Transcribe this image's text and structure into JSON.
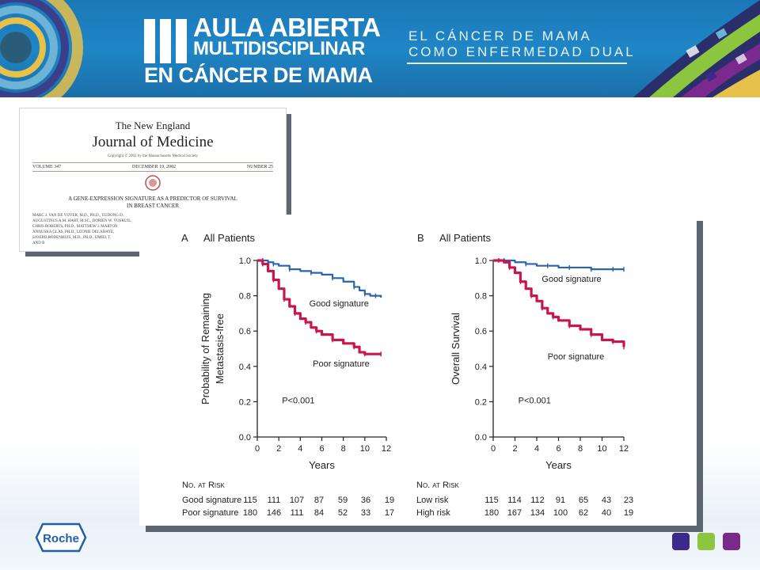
{
  "header": {
    "roman": "III",
    "title_line1": "AULA ABIERTA",
    "title_line2": "MULTIDISCIPLINAR",
    "title_line3": "EN CÁNCER DE MAMA",
    "subtitle_line1": "EL CÁNCER DE MAMA",
    "subtitle_line2": "COMO ENFERMEDAD DUAL"
  },
  "paper": {
    "journal_line1": "The New England",
    "journal_line2": "Journal of Medicine",
    "copyright": "Copyright © 2002 by the Massachusetts Medical Society",
    "volume": "VOLUME 347",
    "date": "DECEMBER 19, 2002",
    "number": "NUMBER 25",
    "article_title_line1": "A GENE-EXPRESSION SIGNATURE AS A PREDICTOR OF SURVIVAL",
    "article_title_line2": "IN BREAST CANCER",
    "authors": [
      "MARC J. VAN DE VIJVER, M.D., PH.D., YUDONG D.",
      "AUGUSTINUS A.M. HART, M.SC., DORIEN W. VOSKUIL,",
      "CHRIS ROBERTS, PH.D., MATTHEW J. MARTON",
      "ANNUSKA GLAS, PH.D., LEONIE DELAHAYE,",
      "SJOERD RODENHUIS, M.D., PH.D., EMIEL T.",
      "AND R"
    ]
  },
  "footer": {
    "logo": "Roche"
  },
  "colors": {
    "header_blue": "#1f86c6",
    "good": "#2b63b0",
    "poor": "#c8174a",
    "sq1": "#3b2a8c",
    "sq2": "#8cc63f",
    "sq3": "#7a2a8c"
  },
  "chart_data": [
    {
      "type": "line",
      "panel_letter": "A",
      "title": "All Patients",
      "ylabel_line1": "Probability of Remaining",
      "ylabel_line2": "Metastasis-free",
      "xlabel": "Years",
      "xlim": [
        0,
        12
      ],
      "ylim": [
        0.0,
        1.0
      ],
      "xticks": [
        0,
        2,
        4,
        6,
        8,
        10,
        12
      ],
      "yticks": [
        0.0,
        0.2,
        0.4,
        0.6,
        0.8,
        1.0
      ],
      "ytick_labels": [
        "0.0",
        "0.2",
        "0.4",
        "0.6",
        "0.8",
        "1.0"
      ],
      "pvalue": "P<0.001",
      "series": [
        {
          "name": "Good signature",
          "color": "#2b63b0",
          "x": [
            0,
            0.5,
            1,
            1.5,
            2,
            3,
            4,
            5,
            6,
            7,
            8,
            9,
            9.5,
            10,
            10.5,
            11,
            11.5
          ],
          "y": [
            1.0,
            1.0,
            0.99,
            0.98,
            0.97,
            0.95,
            0.94,
            0.93,
            0.92,
            0.9,
            0.88,
            0.85,
            0.83,
            0.81,
            0.8,
            0.8,
            0.79
          ]
        },
        {
          "name": "Poor signature",
          "color": "#c8174a",
          "x": [
            0,
            0.5,
            1,
            1.5,
            2,
            2.5,
            3,
            3.5,
            4,
            4.5,
            5,
            5.5,
            6,
            7,
            8,
            9,
            9.5,
            10,
            11,
            11.5
          ],
          "y": [
            1.0,
            0.98,
            0.94,
            0.89,
            0.84,
            0.78,
            0.74,
            0.7,
            0.67,
            0.65,
            0.62,
            0.6,
            0.58,
            0.55,
            0.53,
            0.51,
            0.48,
            0.47,
            0.47,
            0.47
          ]
        }
      ],
      "risk_table": {
        "header": "No. at Risk",
        "rows": [
          {
            "label": "Good signature",
            "values": [
              "115",
              "111",
              "107",
              "87",
              "59",
              "36",
              "19"
            ]
          },
          {
            "label": "Poor signature",
            "values": [
              "180",
              "146",
              "111",
              "84",
              "52",
              "33",
              "17"
            ]
          }
        ]
      }
    },
    {
      "type": "line",
      "panel_letter": "B",
      "title": "All Patients",
      "ylabel": "Overall Survival",
      "xlabel": "Years",
      "xlim": [
        0,
        12
      ],
      "ylim": [
        0.0,
        1.0
      ],
      "xticks": [
        0,
        2,
        4,
        6,
        8,
        10,
        12
      ],
      "yticks": [
        0.0,
        0.2,
        0.4,
        0.6,
        0.8,
        1.0
      ],
      "ytick_labels": [
        "0.0",
        "0.2",
        "0.4",
        "0.6",
        "0.8",
        "1.0"
      ],
      "pvalue": "P<0.001",
      "series": [
        {
          "name": "Good signature",
          "color": "#2b63b0",
          "x": [
            0,
            1,
            2,
            3,
            4,
            5,
            6,
            7,
            8,
            9,
            10,
            11,
            11.5,
            12
          ],
          "y": [
            1.0,
            1.0,
            0.99,
            0.98,
            0.97,
            0.97,
            0.96,
            0.96,
            0.96,
            0.95,
            0.95,
            0.95,
            0.95,
            0.95
          ]
        },
        {
          "name": "Poor signature",
          "color": "#c8174a",
          "x": [
            0,
            0.5,
            1,
            1.5,
            2,
            2.5,
            3,
            3.5,
            4,
            4.5,
            5,
            5.5,
            6,
            7,
            8,
            9,
            10,
            11,
            11.5,
            12
          ],
          "y": [
            1.0,
            1.0,
            0.99,
            0.96,
            0.93,
            0.88,
            0.84,
            0.8,
            0.77,
            0.73,
            0.7,
            0.68,
            0.66,
            0.63,
            0.61,
            0.58,
            0.55,
            0.54,
            0.54,
            0.51
          ]
        }
      ],
      "risk_table": {
        "header": "No. at Risk",
        "rows": [
          {
            "label": "Low risk",
            "values": [
              "115",
              "114",
              "112",
              "91",
              "65",
              "43",
              "23"
            ]
          },
          {
            "label": "High risk",
            "values": [
              "180",
              "167",
              "134",
              "100",
              "62",
              "40",
              "19"
            ]
          }
        ]
      }
    }
  ]
}
